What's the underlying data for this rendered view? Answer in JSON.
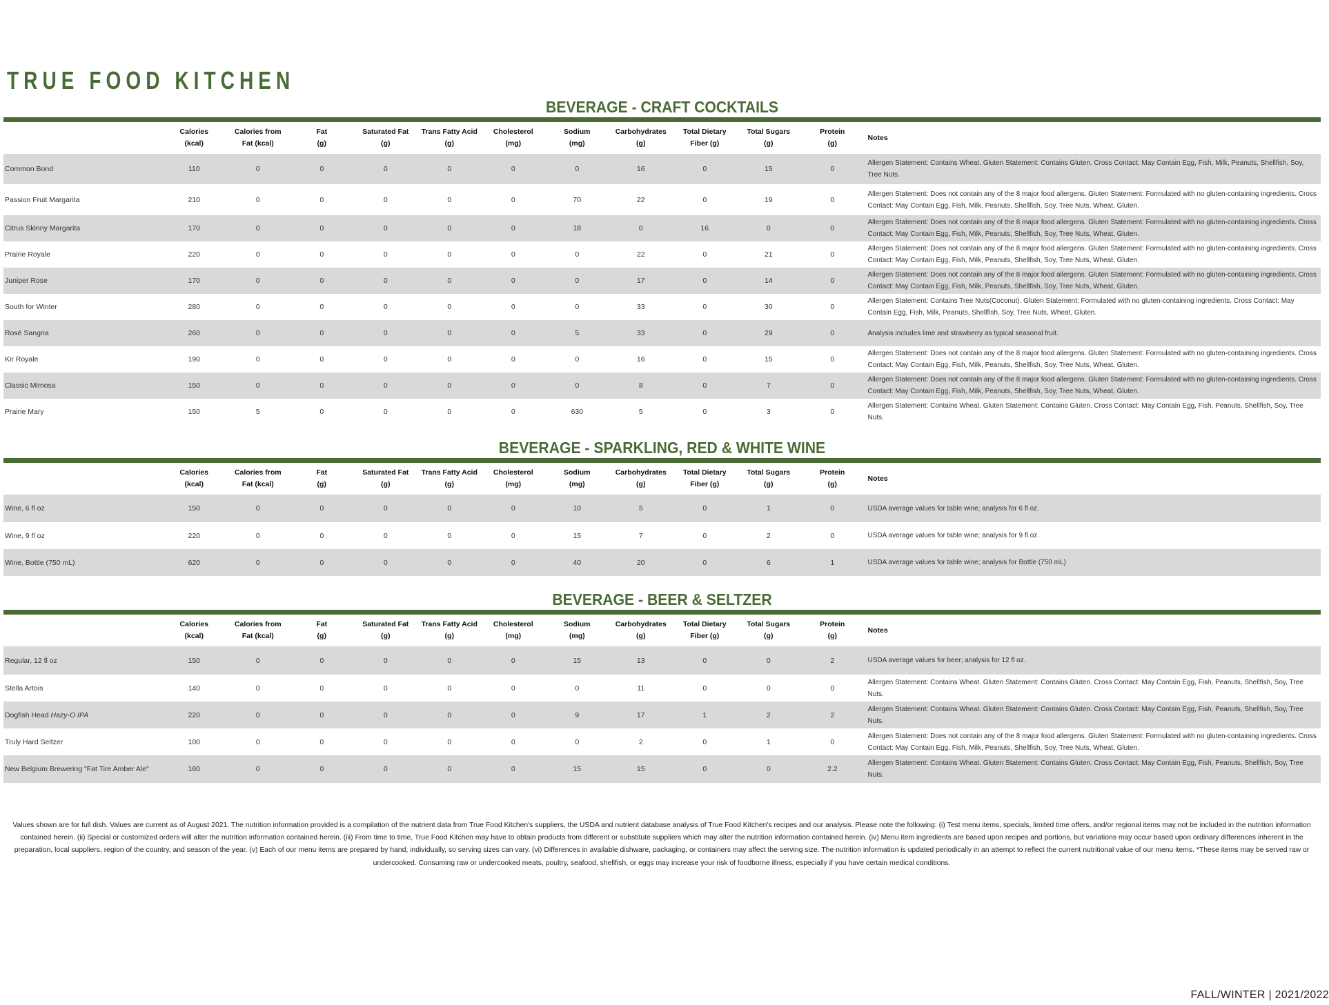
{
  "brand": "TRUE FOOD KITCHEN",
  "columns": [
    "Calories\n(kcal)",
    "Calories from\nFat (kcal)",
    "Fat\n(g)",
    "Saturated Fat\n(g)",
    "Trans Fatty Acid\n(g)",
    "Cholesterol\n(mg)",
    "Sodium\n(mg)",
    "Carbohydrates\n(g)",
    "Total Dietary\nFiber (g)",
    "Total Sugars\n(g)",
    "Protein\n(g)"
  ],
  "notes_header": "Notes",
  "sections": [
    {
      "title": "BEVERAGE - CRAFT COCKTAILS",
      "rows": [
        {
          "name": "Common Bond",
          "values": [
            "110",
            "0",
            "0",
            "0",
            "0",
            "0",
            "0",
            "16",
            "0",
            "15",
            "0"
          ],
          "note": "Allergen Statement: Contains Wheat.  Gluten Statement: Contains Gluten.  Cross Contact: May Contain Egg, Fish, Milk, Peanuts, Shellfish, Soy, Tree Nuts."
        },
        {
          "name": "Passion Fruit Margarita",
          "values": [
            "210",
            "0",
            "0",
            "0",
            "0",
            "0",
            "70",
            "22",
            "0",
            "19",
            "0"
          ],
          "note": "Allergen Statement: Does not contain any of the 8 major food allergens.  Gluten Statement: Formulated with no gluten-containing ingredients.  Cross Contact: May Contain Egg, Fish, Milk, Peanuts, Shellfish, Soy, Tree Nuts, Wheat, Gluten."
        },
        {
          "name": "Citrus Skinny Margarita",
          "values": [
            "170",
            "0",
            "0",
            "0",
            "0",
            "0",
            "18",
            "0",
            "16",
            "0",
            "0"
          ],
          "note": "Allergen Statement: Does not contain any of the 8 major food allergens.  Gluten Statement: Formulated with no gluten-containing ingredients.  Cross Contact: May Contain Egg, Fish, Milk, Peanuts, Shellfish, Soy, Tree Nuts, Wheat, Gluten."
        },
        {
          "name": "Prairie Royale",
          "values": [
            "220",
            "0",
            "0",
            "0",
            "0",
            "0",
            "0",
            "22",
            "0",
            "21",
            "0"
          ],
          "note": "Allergen Statement: Does not contain any of the 8 major food allergens.  Gluten Statement: Formulated with no gluten-containing ingredients.  Cross Contact: May Contain Egg, Fish, Milk, Peanuts, Shellfish, Soy, Tree Nuts, Wheat, Gluten."
        },
        {
          "name": "Juniper Rose",
          "values": [
            "170",
            "0",
            "0",
            "0",
            "0",
            "0",
            "0",
            "17",
            "0",
            "14",
            "0"
          ],
          "note": "Allergen Statement: Does not contain any of the 8 major food allergens.  Gluten Statement: Formulated with no gluten-containing ingredients.  Cross Contact: May Contain Egg, Fish, Milk, Peanuts, Shellfish, Soy, Tree Nuts, Wheat, Gluten."
        },
        {
          "name": "South for Winter",
          "values": [
            "280",
            "0",
            "0",
            "0",
            "0",
            "0",
            "0",
            "33",
            "0",
            "30",
            "0"
          ],
          "note": "Allergen Statement: Contains Tree Nuts(Coconut).  Gluten Statement: Formulated with no gluten-containing ingredients.  Cross Contact: May Contain Egg, Fish, Milk, Peanuts, Shellfish, Soy, Tree Nuts, Wheat, Gluten."
        },
        {
          "name": "Rosé Sangria",
          "values": [
            "260",
            "0",
            "0",
            "0",
            "0",
            "0",
            "5",
            "33",
            "0",
            "29",
            "0"
          ],
          "note": "Analysis includes lime and strawberry as typical seasonal fruit."
        },
        {
          "name": "Kir Royale",
          "values": [
            "190",
            "0",
            "0",
            "0",
            "0",
            "0",
            "0",
            "16",
            "0",
            "15",
            "0"
          ],
          "note": "Allergen Statement: Does not contain any of the 8 major food allergens.  Gluten Statement: Formulated with no gluten-containing ingredients.  Cross Contact: May Contain Egg, Fish, Milk, Peanuts, Shellfish, Soy, Tree Nuts, Wheat, Gluten."
        },
        {
          "name": "Classic Mimosa",
          "values": [
            "150",
            "0",
            "0",
            "0",
            "0",
            "0",
            "0",
            "8",
            "0",
            "7",
            "0"
          ],
          "note": "Allergen Statement: Does not contain any of the 8 major food allergens.  Gluten Statement: Formulated with no gluten-containing ingredients.  Cross Contact: May Contain Egg, Fish, Milk, Peanuts, Shellfish, Soy, Tree Nuts, Wheat, Gluten."
        },
        {
          "name": "Prairie Mary",
          "values": [
            "150",
            "5",
            "0",
            "0",
            "0",
            "0",
            "630",
            "5",
            "0",
            "3",
            "0"
          ],
          "note": "Allergen Statement: Contains Wheat.  Gluten Statement: Contains Gluten.  Cross Contact: May Contain Egg, Fish, Peanuts, Shellfish, Soy, Tree Nuts."
        }
      ]
    },
    {
      "title": "BEVERAGE - SPARKLING, RED & WHITE WINE",
      "rows": [
        {
          "name": "Wine, 6 fl oz",
          "values": [
            "150",
            "0",
            "0",
            "0",
            "0",
            "0",
            "10",
            "5",
            "0",
            "1",
            "0"
          ],
          "note": "USDA average values for table wine; analysis for 6 fl oz."
        },
        {
          "name": "Wine, 9 fl oz",
          "values": [
            "220",
            "0",
            "0",
            "0",
            "0",
            "0",
            "15",
            "7",
            "0",
            "2",
            "0"
          ],
          "note": "USDA average values for table wine; analysis for 9 fl oz."
        },
        {
          "name": "Wine, Bottle (750 mL)",
          "values": [
            "620",
            "0",
            "0",
            "0",
            "0",
            "0",
            "40",
            "20",
            "0",
            "6",
            "1"
          ],
          "note": "USDA average values for table wine; analysis for Bottle (750 mL)"
        }
      ]
    },
    {
      "title": "BEVERAGE - BEER & SELTZER",
      "rows": [
        {
          "name": "Regular, 12 fl oz",
          "values": [
            "150",
            "0",
            "0",
            "0",
            "0",
            "0",
            "15",
            "13",
            "0",
            "0",
            "2"
          ],
          "note": "USDA average values for beer; analysis for 12 fl oz."
        },
        {
          "name": "Stella Artois",
          "values": [
            "140",
            "0",
            "0",
            "0",
            "0",
            "0",
            "0",
            "11",
            "0",
            "0",
            "0"
          ],
          "note": "Allergen Statement: Contains Wheat.  Gluten Statement: Contains Gluten.  Cross Contact: May Contain Egg, Fish, Peanuts, Shellfish, Soy, Tree Nuts."
        },
        {
          "name": "Dogfish Head ",
          "name_italic": "Hazy-O IPA",
          "values": [
            "220",
            "0",
            "0",
            "0",
            "0",
            "0",
            "9",
            "17",
            "1",
            "2",
            "2"
          ],
          "note": "Allergen Statement: Contains Wheat.  Gluten Statement: Contains Gluten.  Cross Contact: May Contain Egg, Fish, Peanuts, Shellfish, Soy, Tree Nuts."
        },
        {
          "name": "Truly Hard Seltzer",
          "values": [
            "100",
            "0",
            "0",
            "0",
            "0",
            "0",
            "0",
            "2",
            "0",
            "1",
            "0"
          ],
          "note": "Allergen Statement: Does not contain any of the 8 major food allergens. Gluten Statement: Formulated with no gluten-containing ingredients. Cross Contact: May Contain Egg, Fish, Milk, Peanuts, Shellfish, Soy, Tree Nuts, Wheat, Gluten."
        },
        {
          "name": "New Belgium Brewering \"Fat Tire Amber Ale\"",
          "values": [
            "160",
            "0",
            "0",
            "0",
            "0",
            "0",
            "15",
            "15",
            "0",
            "0",
            "2.2"
          ],
          "note": "Allergen Statement: Contains Wheat.  Gluten Statement: Contains Gluten.  Cross Contact: May Contain Egg, Fish, Peanuts, Shellfish, Soy, Tree Nuts."
        }
      ]
    }
  ],
  "footer": "Values shown are for full dish. Values are current as of August 2021. The nutrition information provided is a compilation of the nutrient data from True Food Kitchen's suppliers, the USDA and nutrient database analysis of True Food Kitchen's recipes and our analysis. Please note the following: (i) Test menu items, specials, limited time offers, and/or regional items may not be included in the nutrition information contained herein. (ii) Special or customized orders will alter the nutrition information contained herein. (iii) From time to time, True Food Kitchen may have to obtain products from different or substitute suppliers which may alter the nutrition information contained herein. (iv) Menu item ingredients are based upon recipes and portions, but variations may occur based upon ordinary differences inherent in the preparation, local suppliers, region of the country, and season of the year. (v) Each of our menu items are prepared by hand, individually, so serving sizes can vary. (vi) Differences in available dishware, packaging, or containers may affect the serving size. The nutrition information is updated periodically in an attempt to reflect the current nutritional value of our menu items. *These items may be served raw or undercooked. Consuming raw or undercooked meats, poultry, seafood, shellfish, or eggs may increase your risk of foodborne illness, especially if you have certain medical conditions.",
  "season": "FALL/WINTER | 2021/2022",
  "colors": {
    "accent": "#4a6b35",
    "row_shade": "#d9d9d9"
  }
}
